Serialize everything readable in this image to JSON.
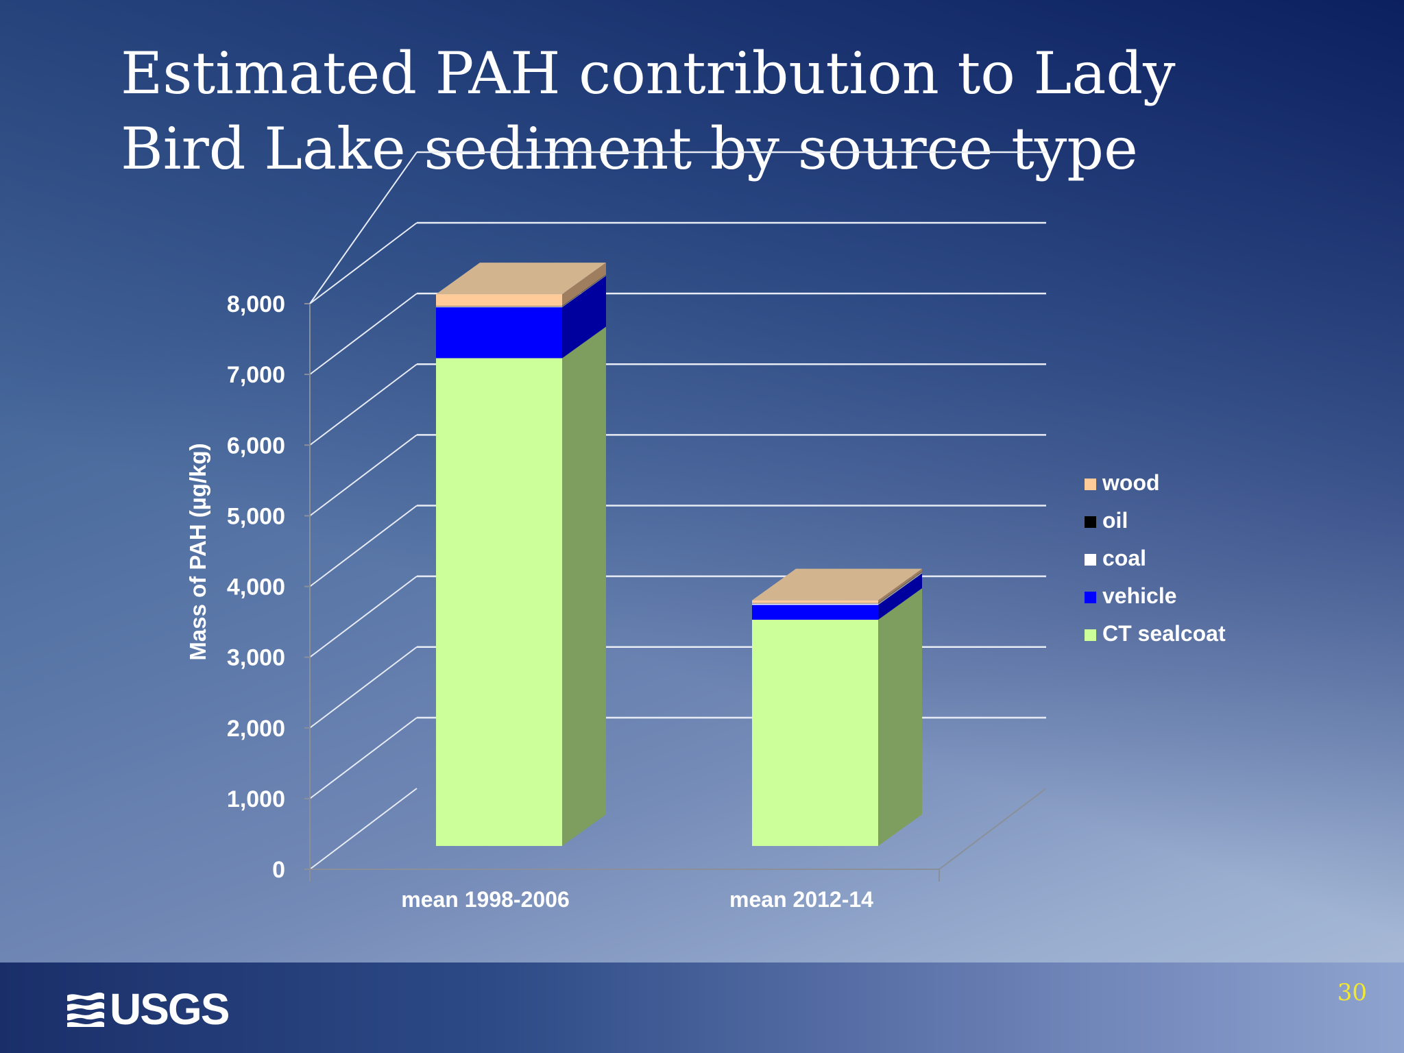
{
  "slide": {
    "title": "Estimated PAH contribution to Lady Bird Lake sediment by source type",
    "page_number": "30",
    "logo_text": "USGS"
  },
  "chart_data": {
    "type": "bar",
    "stacked": true,
    "three_d": true,
    "ylabel": "Mass of PAH (µg/kg)",
    "xlabel": "",
    "ylim": [
      0,
      8000
    ],
    "yticks": [
      0,
      1000,
      2000,
      3000,
      4000,
      5000,
      6000,
      7000,
      8000
    ],
    "ytick_labels": [
      "0",
      "1,000",
      "2,000",
      "3,000",
      "4,000",
      "5,000",
      "6,000",
      "7,000",
      "8,000"
    ],
    "grid": true,
    "legend_position": "right",
    "categories": [
      "mean 1998-2006",
      "mean 2012-14"
    ],
    "series": [
      {
        "name": "CT sealcoat",
        "values": [
          6900,
          3200
        ],
        "color": "#ccff99"
      },
      {
        "name": "vehicle",
        "values": [
          720,
          210
        ],
        "color": "#0000ff"
      },
      {
        "name": "coal",
        "values": [
          10,
          20
        ],
        "color": "#ffffff"
      },
      {
        "name": "oil",
        "values": [
          5,
          5
        ],
        "color": "#000000"
      },
      {
        "name": "wood",
        "values": [
          170,
          40
        ],
        "color": "#ffcc99"
      }
    ],
    "legend_order": [
      "wood",
      "oil",
      "coal",
      "vehicle",
      "CT sealcoat"
    ]
  }
}
